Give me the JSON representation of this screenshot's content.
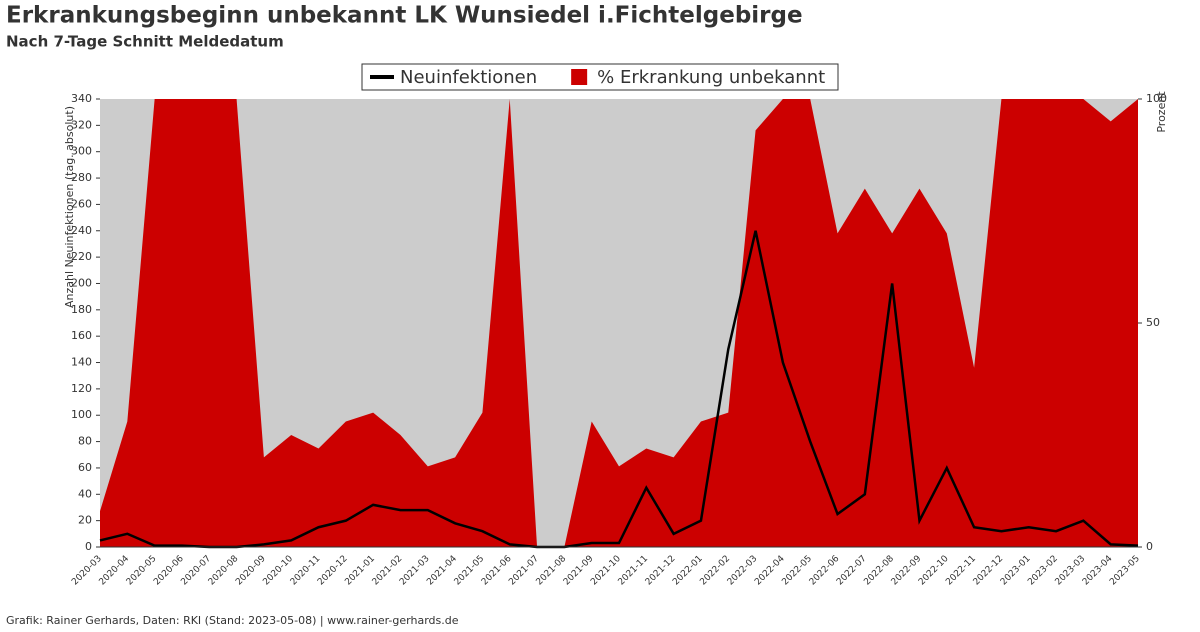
{
  "chart_data": {
    "type": "line",
    "title": "Erkrankungsbeginn unbekannt LK Wunsiedel i.Fichtelgebirge",
    "subtitle": "Nach 7-Tage Schnitt Meldedatum",
    "ylabel": "Anzahl Neuinfektionen (tag. absolut)",
    "y2label": "Prozent",
    "footer": "Grafik: Rainer Gerhards, Daten: RKI (Stand: 2023-05-08) | www.rainer-gerhards.de",
    "legend": "top",
    "categories": [
      "2020-03",
      "2020-04",
      "2020-05",
      "2020-06",
      "2020-07",
      "2020-08",
      "2020-09",
      "2020-10",
      "2020-11",
      "2020-12",
      "2021-01",
      "2021-02",
      "2021-03",
      "2021-04",
      "2021-05",
      "2021-06",
      "2021-07",
      "2021-08",
      "2021-09",
      "2021-10",
      "2021-11",
      "2021-12",
      "2022-01",
      "2022-02",
      "2022-03",
      "2022-04",
      "2022-05",
      "2022-06",
      "2022-07",
      "2022-08",
      "2022-09",
      "2022-10",
      "2022-11",
      "2022-12",
      "2023-01",
      "2023-02",
      "2023-03",
      "2023-04",
      "2023-05"
    ],
    "series": [
      {
        "name": "% Erkrankung unbekannt",
        "type": "area",
        "axis": "y2",
        "color": "#cc0000",
        "values": [
          8,
          28,
          100,
          100,
          100,
          100,
          20,
          25,
          22,
          28,
          30,
          25,
          18,
          20,
          30,
          100,
          0,
          0,
          28,
          18,
          22,
          20,
          28,
          30,
          93,
          100,
          100,
          70,
          80,
          70,
          80,
          70,
          40,
          100,
          100,
          100,
          100,
          95,
          100
        ]
      },
      {
        "name": "Neuinfektionen",
        "type": "line",
        "color": "#000000",
        "values": [
          5,
          10,
          1,
          1,
          0,
          0,
          2,
          5,
          15,
          20,
          32,
          28,
          28,
          18,
          12,
          2,
          0,
          0,
          3,
          3,
          45,
          10,
          20,
          150,
          240,
          140,
          80,
          25,
          40,
          200,
          20,
          60,
          15,
          12,
          15,
          12,
          20,
          2,
          1
        ]
      }
    ],
    "ylim": [
      0,
      340
    ],
    "yticks": [
      0,
      20,
      40,
      60,
      80,
      100,
      120,
      140,
      160,
      180,
      200,
      220,
      240,
      260,
      280,
      300,
      320,
      340
    ],
    "y2lim": [
      0,
      100
    ],
    "y2ticks": [
      0,
      50,
      100
    ]
  }
}
